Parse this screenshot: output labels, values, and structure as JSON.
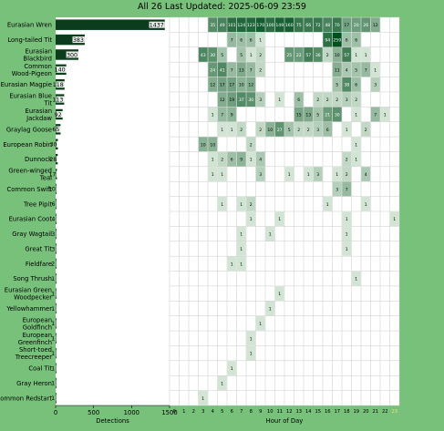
{
  "header": {
    "title": "All 26 Last Updated: 2025-06-09 23:59"
  },
  "colors": {
    "background": "#77c17a",
    "bar": "#0b3d1c",
    "grid": "#cccccc"
  },
  "chart_data": [
    {
      "type": "bar",
      "orientation": "horizontal",
      "xlabel": "Detections",
      "xlim": [
        0,
        1500
      ],
      "xticks": [
        0,
        500,
        1000,
        1500
      ],
      "categories": [
        "Eurasian Wren",
        "Long-tailed Tit",
        "Eurasian Blackbird",
        "Common Wood-Pigeon",
        "Eurasian Magpie",
        "Eurasian Blue Tit",
        "Eurasian Jackdaw",
        "Graylag Goose",
        "European Robin",
        "Dunnock",
        "Green-winged Teal",
        "Common Swift",
        "Tree Pipit",
        "Eurasian Coot",
        "Gray Wagtail",
        "Great Tit",
        "Fieldfare",
        "Song Thrush",
        "Eurasian Green Woodpecker",
        "Yellowhammer",
        "European Goldfinch",
        "European Greenfinch",
        "Short-toed Treecreeper",
        "Coal Tit",
        "Gray Heron",
        "Common Redstart"
      ],
      "values": [
        1437,
        383,
        300,
        140,
        118,
        113,
        92,
        65,
        30,
        28,
        17,
        10,
        6,
        4,
        3,
        3,
        2,
        1,
        1,
        1,
        1,
        1,
        1,
        1,
        1,
        1
      ]
    },
    {
      "type": "heatmap",
      "xlabel": "Hour of Day",
      "hours": [
        0,
        1,
        2,
        3,
        4,
        5,
        6,
        7,
        8,
        9,
        10,
        11,
        12,
        13,
        14,
        15,
        16,
        17,
        18,
        19,
        20,
        21,
        22,
        23
      ],
      "rows": [
        {
          "species": "Eurasian Wren",
          "cells": [
            [
              4,
              35
            ],
            [
              5,
              49
            ],
            [
              6,
              101
            ],
            [
              7,
              124
            ],
            [
              8,
              123
            ],
            [
              9,
              170
            ],
            [
              10,
              100
            ],
            [
              11,
              149
            ],
            [
              12,
              160
            ],
            [
              13,
              75
            ],
            [
              14,
              66
            ],
            [
              15,
              72
            ],
            [
              16,
              48
            ],
            [
              17,
              70
            ],
            [
              18,
              17
            ],
            [
              19,
              20
            ],
            [
              20,
              26
            ],
            [
              21,
              12
            ]
          ]
        },
        {
          "species": "Long-tailed Tit",
          "cells": [
            [
              6,
              7
            ],
            [
              7,
              6
            ],
            [
              8,
              6
            ],
            [
              9,
              1
            ],
            [
              16,
              94
            ],
            [
              17,
              259
            ],
            [
              18,
              6
            ],
            [
              19,
              6
            ]
          ]
        },
        {
          "species": "Eurasian Blackbird",
          "cells": [
            [
              3,
              43
            ],
            [
              4,
              30
            ],
            [
              5,
              5
            ],
            [
              7,
              5
            ],
            [
              8,
              1
            ],
            [
              9,
              2
            ],
            [
              12,
              25
            ],
            [
              13,
              22
            ],
            [
              14,
              57
            ],
            [
              15,
              36
            ],
            [
              16,
              2
            ],
            [
              17,
              10
            ],
            [
              18,
              57
            ],
            [
              19,
              1
            ],
            [
              20,
              1
            ]
          ]
        },
        {
          "species": "Common Wood-Pigeon",
          "cells": [
            [
              4,
              24
            ],
            [
              5,
              41
            ],
            [
              6,
              7
            ],
            [
              7,
              13
            ],
            [
              8,
              7
            ],
            [
              9,
              2
            ],
            [
              17,
              11
            ],
            [
              18,
              4
            ],
            [
              19,
              5
            ],
            [
              20,
              7
            ],
            [
              21,
              1
            ]
          ]
        },
        {
          "species": "Eurasian Magpie",
          "cells": [
            [
              4,
              12
            ],
            [
              5,
              17
            ],
            [
              6,
              17
            ],
            [
              7,
              10
            ],
            [
              8,
              12
            ],
            [
              17,
              5
            ],
            [
              18,
              38
            ],
            [
              19,
              6
            ],
            [
              21,
              3
            ]
          ]
        },
        {
          "species": "Eurasian Blue Tit",
          "cells": [
            [
              5,
              12
            ],
            [
              6,
              19
            ],
            [
              7,
              37
            ],
            [
              8,
              30
            ],
            [
              9,
              3
            ],
            [
              11,
              1
            ],
            [
              13,
              6
            ],
            [
              15,
              2
            ],
            [
              16,
              2
            ],
            [
              17,
              2
            ],
            [
              18,
              3
            ],
            [
              19,
              2
            ]
          ]
        },
        {
          "species": "Eurasian Jackdaw",
          "cells": [
            [
              4,
              1
            ],
            [
              5,
              7
            ],
            [
              6,
              9
            ],
            [
              13,
              15
            ],
            [
              14,
              13
            ],
            [
              15,
              5
            ],
            [
              16,
              21
            ],
            [
              17,
              30
            ],
            [
              19,
              1
            ],
            [
              21,
              7
            ],
            [
              22,
              1
            ]
          ]
        },
        {
          "species": "Graylag Goose",
          "cells": [
            [
              5,
              1
            ],
            [
              6,
              1
            ],
            [
              7,
              2
            ],
            [
              9,
              2
            ],
            [
              10,
              10
            ],
            [
              11,
              27
            ],
            [
              12,
              5
            ],
            [
              13,
              2
            ],
            [
              14,
              2
            ],
            [
              15,
              3
            ],
            [
              16,
              6
            ],
            [
              18,
              1
            ],
            [
              20,
              2
            ]
          ]
        },
        {
          "species": "European Robin",
          "cells": [
            [
              3,
              10
            ],
            [
              4,
              10
            ],
            [
              8,
              2
            ],
            [
              19,
              1
            ]
          ]
        },
        {
          "species": "Dunnock",
          "cells": [
            [
              4,
              1
            ],
            [
              5,
              2
            ],
            [
              6,
              6
            ],
            [
              7,
              9
            ],
            [
              8,
              1
            ],
            [
              9,
              4
            ],
            [
              18,
              2
            ],
            [
              19,
              1
            ]
          ]
        },
        {
          "species": "Green-winged Teal",
          "cells": [
            [
              4,
              1
            ],
            [
              5,
              1
            ],
            [
              9,
              3
            ],
            [
              12,
              1
            ],
            [
              14,
              1
            ],
            [
              15,
              3
            ],
            [
              17,
              1
            ],
            [
              18,
              2
            ],
            [
              20,
              4
            ]
          ]
        },
        {
          "species": "Common Swift",
          "cells": [
            [
              17,
              3
            ],
            [
              18,
              7
            ]
          ]
        },
        {
          "species": "Tree Pipit",
          "cells": [
            [
              5,
              1
            ],
            [
              7,
              1
            ],
            [
              8,
              2
            ],
            [
              16,
              1
            ],
            [
              20,
              1
            ]
          ]
        },
        {
          "species": "Eurasian Coot",
          "cells": [
            [
              8,
              1
            ],
            [
              11,
              1
            ],
            [
              18,
              1
            ],
            [
              23,
              1
            ]
          ]
        },
        {
          "species": "Gray Wagtail",
          "cells": [
            [
              7,
              1
            ],
            [
              10,
              1
            ],
            [
              18,
              1
            ]
          ]
        },
        {
          "species": "Great Tit",
          "cells": [
            [
              7,
              1
            ],
            [
              18,
              1
            ]
          ]
        },
        {
          "species": "Fieldfare",
          "cells": [
            [
              6,
              1
            ],
            [
              7,
              1
            ]
          ]
        },
        {
          "species": "Song Thrush",
          "cells": [
            [
              19,
              1
            ]
          ]
        },
        {
          "species": "Eurasian Green Woodpecker",
          "cells": [
            [
              11,
              1
            ]
          ]
        },
        {
          "species": "Yellowhammer",
          "cells": [
            [
              10,
              1
            ]
          ]
        },
        {
          "species": "European Goldfinch",
          "cells": [
            [
              9,
              1
            ]
          ]
        },
        {
          "species": "European Greenfinch",
          "cells": [
            [
              8,
              1
            ]
          ]
        },
        {
          "species": "Short-toed Treecreeper",
          "cells": [
            [
              8,
              1
            ]
          ]
        },
        {
          "species": "Coal Tit",
          "cells": [
            [
              6,
              1
            ]
          ]
        },
        {
          "species": "Gray Heron",
          "cells": [
            [
              5,
              1
            ]
          ]
        },
        {
          "species": "Common Redstart",
          "cells": [
            [
              3,
              1
            ]
          ]
        }
      ]
    }
  ]
}
